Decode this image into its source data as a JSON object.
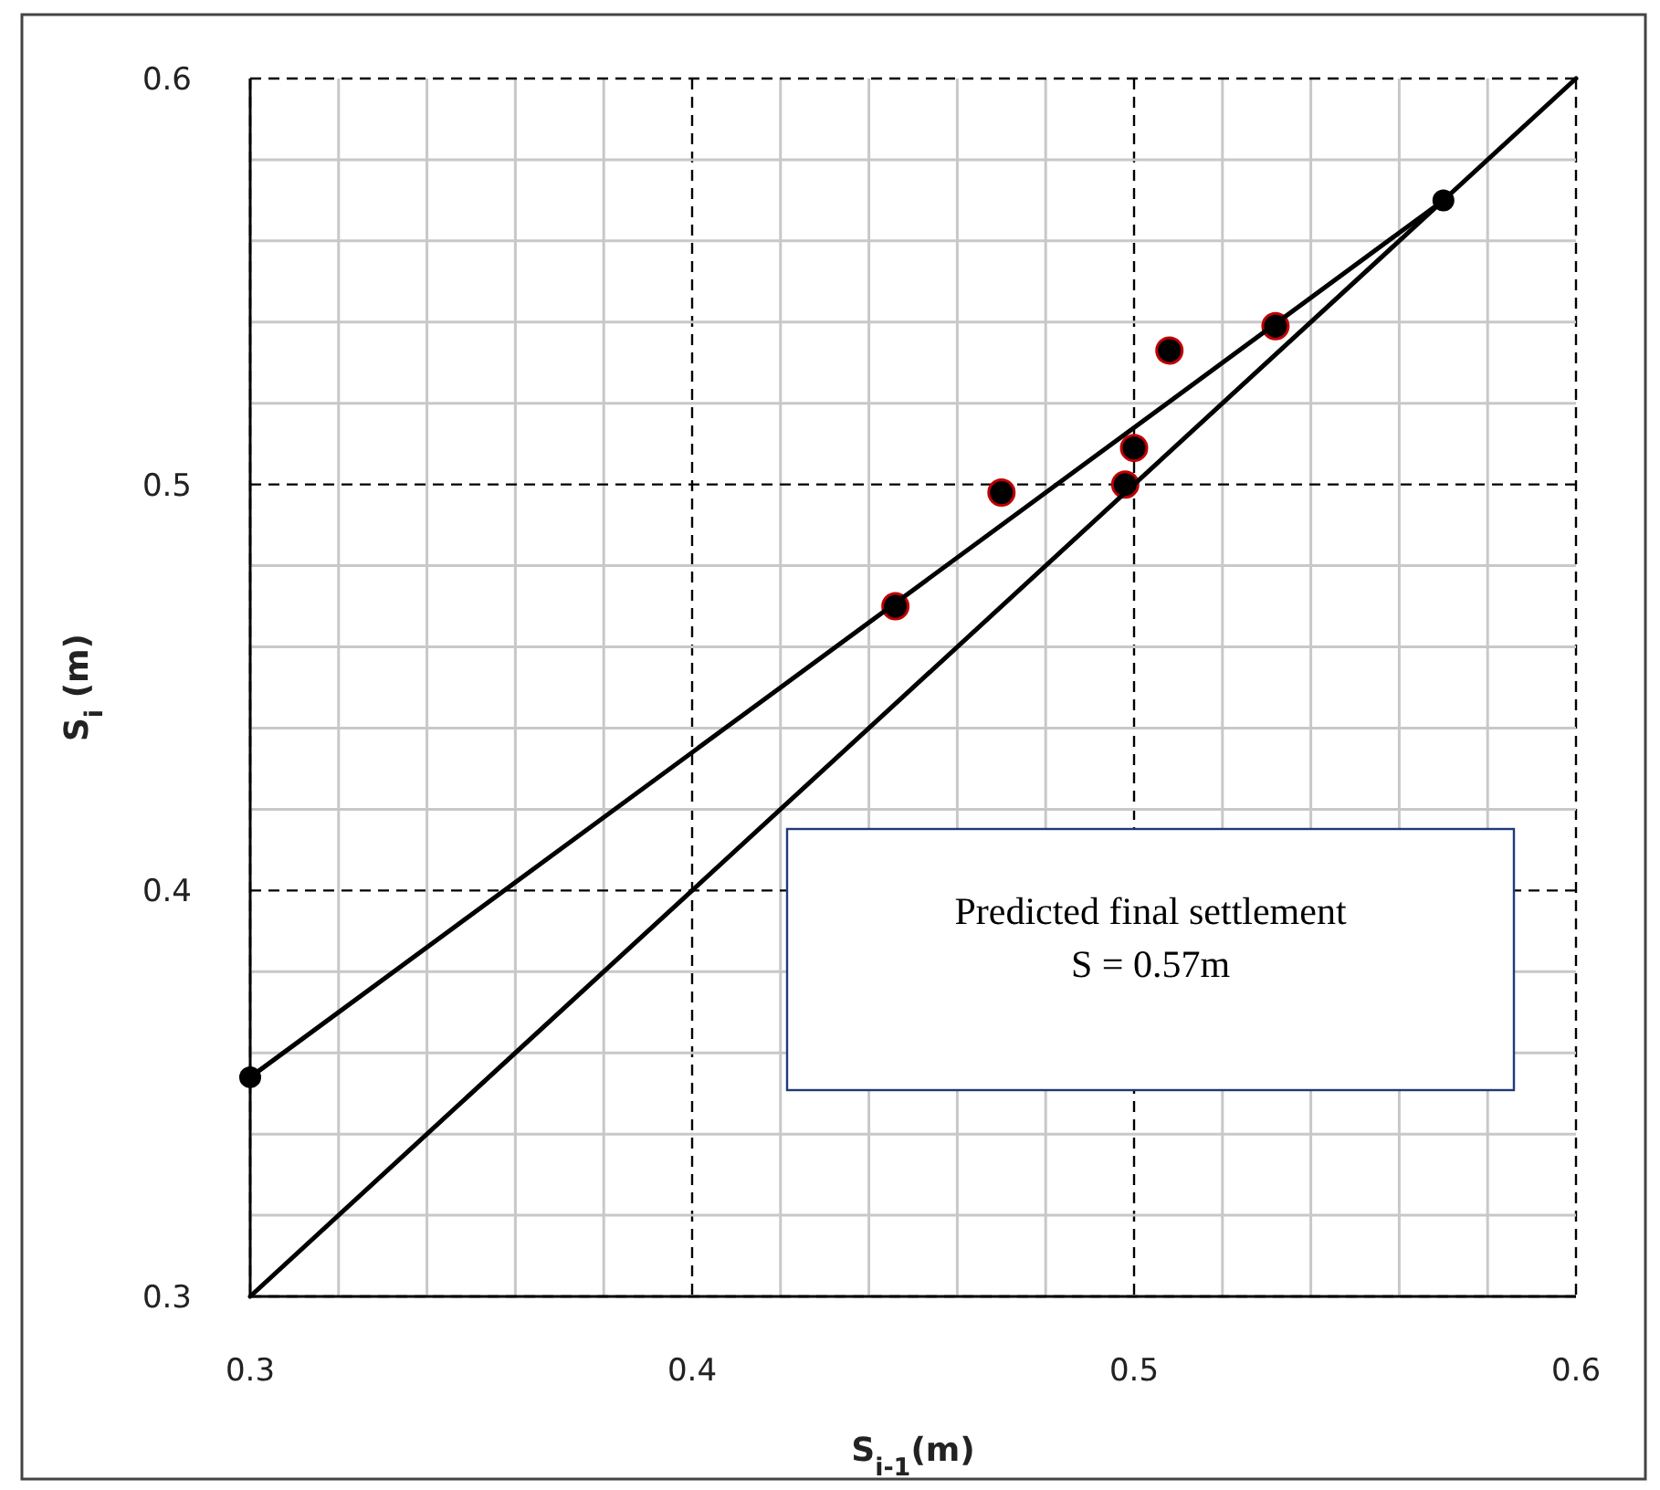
{
  "chart_data": {
    "type": "scatter",
    "xlabel": "S$_{i-1}$(m)",
    "ylabel": "S$_{i}$ (m)",
    "annotations": [
      "Predicted final settlement\nS = 0.57m"
    ],
    "xlim": [
      0.3,
      0.6
    ],
    "ylim": [
      0.3,
      0.6
    ],
    "xticks": [
      0.3,
      {
        "value": 0.32,
        "label": null
      },
      {
        "value": 0.34,
        "label": null
      },
      {
        "value": 0.36,
        "label": null
      },
      {
        "value": 0.38,
        "label": null
      },
      0.4,
      {
        "value": 0.42,
        "label": null
      },
      {
        "value": 0.44,
        "label": null
      },
      {
        "value": 0.46,
        "label": null
      },
      {
        "value": 0.48,
        "label": null
      },
      0.5,
      {
        "value": 0.52,
        "label": null
      },
      {
        "value": 0.54,
        "label": null
      },
      {
        "value": 0.56,
        "label": null
      },
      {
        "value": 0.58,
        "label": null
      },
      0.6
    ],
    "yticks": [
      0.3,
      {
        "value": 0.32,
        "label": null
      },
      {
        "value": 0.34,
        "label": null
      },
      {
        "value": 0.36,
        "label": null
      },
      {
        "value": 0.38,
        "label": null
      },
      0.4,
      {
        "value": 0.42,
        "label": null
      },
      {
        "value": 0.44,
        "label": null
      },
      {
        "value": 0.46,
        "label": null
      },
      {
        "value": 0.48,
        "label": null
      },
      0.5,
      {
        "value": 0.52,
        "label": null
      },
      {
        "value": 0.54,
        "label": null
      },
      {
        "value": 0.56,
        "label": null
      },
      {
        "value": 0.58,
        "label": null
      },
      0.6
    ],
    "grid": true,
    "marker": "circle",
    "series": [
      {
        "color": "#000000",
        "x": [
          0.446,
          0.47,
          0.498,
          0.5,
          0.508,
          0.532
        ],
        "values": [
          0.47,
          0.498,
          0.5,
          0.509,
          0.533,
          0.539
        ]
      },
      {
        "type": "line",
        "color": "#000000",
        "marker": "circle",
        "x": [
          0.3,
          0.57
        ],
        "values": [
          0.354,
          0.57
        ]
      },
      {
        "type": "line",
        "color": "#000000",
        "marker": "none",
        "x": [
          0.3,
          0.6
        ],
        "values": [
          0.3,
          0.6
        ]
      }
    ]
  }
}
